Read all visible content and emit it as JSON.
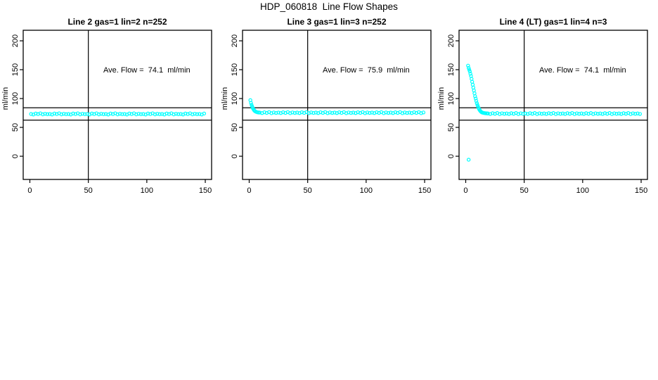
{
  "page_title": "HDP_060818  Line Flow Shapes",
  "colors": {
    "point": "#00FFFF",
    "axis": "#000000",
    "background": "#FFFFFF"
  },
  "chart_data": [
    {
      "type": "scatter",
      "title": "Line 2 gas=1 lin=2 n=252",
      "ylabel": "ml/min",
      "annotation": "Ave. Flow =  74.1  ml/min",
      "ave_flow_ml_min": 74.1,
      "annotation_xy": [
        100,
        150
      ],
      "x_ticks": [
        0,
        50,
        100,
        150
      ],
      "y_ticks": [
        0,
        50,
        100,
        150,
        200
      ],
      "x_domain": [
        -5.7,
        155.4
      ],
      "y_domain": [
        -40.2,
        218.3
      ],
      "vline_x": 50,
      "hlines_y": [
        84,
        62.5
      ],
      "grid": false,
      "points": [
        [
          1,
          73.2
        ],
        [
          3,
          72.4
        ],
        [
          5,
          74.0
        ],
        [
          7,
          73.1
        ],
        [
          9,
          74.4
        ],
        [
          11,
          72.6
        ],
        [
          13,
          73.6
        ],
        [
          15,
          72.9
        ],
        [
          17,
          73.2
        ],
        [
          19,
          72.4
        ],
        [
          21,
          74.0
        ],
        [
          23,
          73.1
        ],
        [
          25,
          74.4
        ],
        [
          27,
          72.6
        ],
        [
          29,
          73.6
        ],
        [
          31,
          72.9
        ],
        [
          33,
          73.2
        ],
        [
          35,
          72.4
        ],
        [
          37,
          74.0
        ],
        [
          39,
          73.1
        ],
        [
          41,
          74.4
        ],
        [
          43,
          72.6
        ],
        [
          45,
          73.6
        ],
        [
          47,
          72.9
        ],
        [
          49,
          73.2
        ],
        [
          51,
          72.4
        ],
        [
          53,
          74.0
        ],
        [
          55,
          73.1
        ],
        [
          57,
          74.4
        ],
        [
          59,
          72.6
        ],
        [
          61,
          73.6
        ],
        [
          63,
          72.9
        ],
        [
          65,
          73.2
        ],
        [
          67,
          72.4
        ],
        [
          69,
          74.0
        ],
        [
          71,
          73.1
        ],
        [
          73,
          74.4
        ],
        [
          75,
          72.6
        ],
        [
          77,
          73.6
        ],
        [
          79,
          72.9
        ],
        [
          81,
          73.2
        ],
        [
          83,
          72.4
        ],
        [
          85,
          74.0
        ],
        [
          87,
          73.1
        ],
        [
          89,
          74.4
        ],
        [
          91,
          72.6
        ],
        [
          93,
          73.6
        ],
        [
          95,
          72.9
        ],
        [
          97,
          73.2
        ],
        [
          99,
          72.4
        ],
        [
          101,
          74.0
        ],
        [
          103,
          73.1
        ],
        [
          105,
          74.4
        ],
        [
          107,
          72.6
        ],
        [
          109,
          73.6
        ],
        [
          111,
          72.9
        ],
        [
          113,
          73.2
        ],
        [
          115,
          72.4
        ],
        [
          117,
          74.0
        ],
        [
          119,
          73.1
        ],
        [
          121,
          74.4
        ],
        [
          123,
          72.6
        ],
        [
          125,
          73.6
        ],
        [
          127,
          72.9
        ],
        [
          129,
          73.2
        ],
        [
          131,
          72.4
        ],
        [
          133,
          74.0
        ],
        [
          135,
          73.1
        ],
        [
          137,
          74.4
        ],
        [
          139,
          72.6
        ],
        [
          141,
          73.6
        ],
        [
          143,
          72.9
        ],
        [
          145,
          73.2
        ],
        [
          147,
          72.4
        ],
        [
          149,
          74.0
        ]
      ]
    },
    {
      "type": "scatter",
      "title": "Line 3 gas=1 lin=3 n=252",
      "ylabel": "ml/min",
      "annotation": "Ave. Flow =  75.9  ml/min",
      "ave_flow_ml_min": 75.9,
      "annotation_xy": [
        100,
        150
      ],
      "x_ticks": [
        0,
        50,
        100,
        150
      ],
      "y_ticks": [
        0,
        50,
        100,
        150,
        200
      ],
      "x_domain": [
        -5.7,
        155.4
      ],
      "y_domain": [
        -40.2,
        218.3
      ],
      "vline_x": 50,
      "hlines_y": [
        84,
        62.5
      ],
      "grid": false,
      "points": [
        [
          1,
          97.2
        ],
        [
          1.5,
          92.5
        ],
        [
          2,
          89.0
        ],
        [
          2.5,
          86.2
        ],
        [
          3,
          83.8
        ],
        [
          3.5,
          81.9
        ],
        [
          4,
          80.3
        ],
        [
          4.5,
          79.0
        ],
        [
          5,
          78.0
        ],
        [
          6,
          76.9
        ],
        [
          7,
          76.2
        ],
        [
          8,
          75.8
        ],
        [
          9,
          75.7
        ],
        [
          11,
          74.8
        ],
        [
          13,
          76.2
        ],
        [
          15,
          75.1
        ],
        [
          17,
          76.5
        ],
        [
          19,
          74.6
        ],
        [
          21,
          75.9
        ],
        [
          23,
          75.0
        ],
        [
          25,
          75.7
        ],
        [
          27,
          74.8
        ],
        [
          29,
          76.2
        ],
        [
          31,
          75.1
        ],
        [
          33,
          76.5
        ],
        [
          35,
          74.6
        ],
        [
          37,
          75.9
        ],
        [
          39,
          75.0
        ],
        [
          41,
          75.7
        ],
        [
          43,
          74.8
        ],
        [
          45,
          76.2
        ],
        [
          47,
          75.1
        ],
        [
          49,
          76.5
        ],
        [
          51,
          74.6
        ],
        [
          53,
          75.9
        ],
        [
          55,
          75.0
        ],
        [
          57,
          75.7
        ],
        [
          59,
          74.8
        ],
        [
          61,
          76.2
        ],
        [
          63,
          75.1
        ],
        [
          65,
          76.5
        ],
        [
          67,
          74.6
        ],
        [
          69,
          75.9
        ],
        [
          71,
          75.0
        ],
        [
          73,
          75.7
        ],
        [
          75,
          74.8
        ],
        [
          77,
          76.2
        ],
        [
          79,
          75.1
        ],
        [
          81,
          76.5
        ],
        [
          83,
          74.6
        ],
        [
          85,
          75.9
        ],
        [
          87,
          75.0
        ],
        [
          89,
          75.7
        ],
        [
          91,
          74.8
        ],
        [
          93,
          76.2
        ],
        [
          95,
          75.1
        ],
        [
          97,
          76.5
        ],
        [
          99,
          74.6
        ],
        [
          101,
          75.9
        ],
        [
          103,
          75.0
        ],
        [
          105,
          75.7
        ],
        [
          107,
          74.8
        ],
        [
          109,
          76.2
        ],
        [
          111,
          75.1
        ],
        [
          113,
          76.5
        ],
        [
          115,
          74.6
        ],
        [
          117,
          75.9
        ],
        [
          119,
          75.0
        ],
        [
          121,
          75.7
        ],
        [
          123,
          74.8
        ],
        [
          125,
          76.2
        ],
        [
          127,
          75.1
        ],
        [
          129,
          76.5
        ],
        [
          131,
          74.6
        ],
        [
          133,
          75.9
        ],
        [
          135,
          75.0
        ],
        [
          137,
          75.7
        ],
        [
          139,
          74.8
        ],
        [
          141,
          76.2
        ],
        [
          143,
          75.1
        ],
        [
          145,
          76.5
        ],
        [
          147,
          74.6
        ],
        [
          149,
          75.9
        ]
      ]
    },
    {
      "type": "scatter",
      "title": "Line 4 (LT) gas=1 lin=4 n=3",
      "ylabel": "ml/min",
      "annotation": "Ave. Flow =  74.1  ml/min",
      "ave_flow_ml_min": 74.1,
      "annotation_xy": [
        100,
        150
      ],
      "x_ticks": [
        0,
        50,
        100,
        150
      ],
      "y_ticks": [
        0,
        50,
        100,
        150,
        200
      ],
      "x_domain": [
        -5.7,
        155.4
      ],
      "y_domain": [
        -40.2,
        218.3
      ],
      "vline_x": 50,
      "hlines_y": [
        84,
        62.5
      ],
      "grid": false,
      "points": [
        [
          2.5,
          -6
        ],
        [
          2,
          157
        ],
        [
          2.5,
          153
        ],
        [
          3,
          150
        ],
        [
          3.5,
          147
        ],
        [
          4,
          143
        ],
        [
          4.5,
          139
        ],
        [
          5,
          134
        ],
        [
          5.5,
          129
        ],
        [
          6,
          124
        ],
        [
          6.5,
          119
        ],
        [
          7,
          114
        ],
        [
          7.5,
          109
        ],
        [
          8,
          104
        ],
        [
          8.5,
          100
        ],
        [
          9,
          96
        ],
        [
          9.5,
          92
        ],
        [
          10,
          89
        ],
        [
          10.5,
          86
        ],
        [
          11,
          83.5
        ],
        [
          11.5,
          81.5
        ],
        [
          12,
          79.8
        ],
        [
          12.5,
          78.4
        ],
        [
          13,
          77.3
        ],
        [
          13.5,
          76.4
        ],
        [
          14,
          75.8
        ],
        [
          15,
          75.2
        ],
        [
          16,
          74.8
        ],
        [
          17,
          74.5
        ],
        [
          18,
          74.3
        ],
        [
          19,
          74.1
        ],
        [
          21,
          73.3
        ],
        [
          23,
          74.6
        ],
        [
          25,
          73.6
        ],
        [
          27,
          74.9
        ],
        [
          29,
          73.1
        ],
        [
          31,
          74.4
        ],
        [
          33,
          73.5
        ],
        [
          35,
          74.1
        ],
        [
          37,
          73.3
        ],
        [
          39,
          74.6
        ],
        [
          41,
          73.6
        ],
        [
          43,
          74.9
        ],
        [
          45,
          73.1
        ],
        [
          47,
          74.4
        ],
        [
          49,
          73.5
        ],
        [
          51,
          74.1
        ],
        [
          53,
          73.3
        ],
        [
          55,
          74.6
        ],
        [
          57,
          73.6
        ],
        [
          59,
          74.9
        ],
        [
          61,
          73.1
        ],
        [
          63,
          74.4
        ],
        [
          65,
          73.5
        ],
        [
          67,
          74.1
        ],
        [
          69,
          73.3
        ],
        [
          71,
          74.6
        ],
        [
          73,
          73.6
        ],
        [
          75,
          74.9
        ],
        [
          77,
          73.1
        ],
        [
          79,
          74.4
        ],
        [
          81,
          73.5
        ],
        [
          83,
          74.1
        ],
        [
          85,
          73.3
        ],
        [
          87,
          74.6
        ],
        [
          89,
          73.6
        ],
        [
          91,
          74.9
        ],
        [
          93,
          73.1
        ],
        [
          95,
          74.4
        ],
        [
          97,
          73.5
        ],
        [
          99,
          74.1
        ],
        [
          101,
          73.3
        ],
        [
          103,
          74.6
        ],
        [
          105,
          73.6
        ],
        [
          107,
          74.9
        ],
        [
          109,
          73.1
        ],
        [
          111,
          74.4
        ],
        [
          113,
          73.5
        ],
        [
          115,
          74.1
        ],
        [
          117,
          73.3
        ],
        [
          119,
          74.6
        ],
        [
          121,
          73.6
        ],
        [
          123,
          74.9
        ],
        [
          125,
          73.1
        ],
        [
          127,
          74.4
        ],
        [
          129,
          73.5
        ],
        [
          131,
          74.1
        ],
        [
          133,
          73.3
        ],
        [
          135,
          74.6
        ],
        [
          137,
          73.6
        ],
        [
          139,
          74.9
        ],
        [
          141,
          73.1
        ],
        [
          143,
          74.4
        ],
        [
          145,
          73.5
        ],
        [
          147,
          74.1
        ],
        [
          149,
          73.3
        ]
      ]
    }
  ]
}
